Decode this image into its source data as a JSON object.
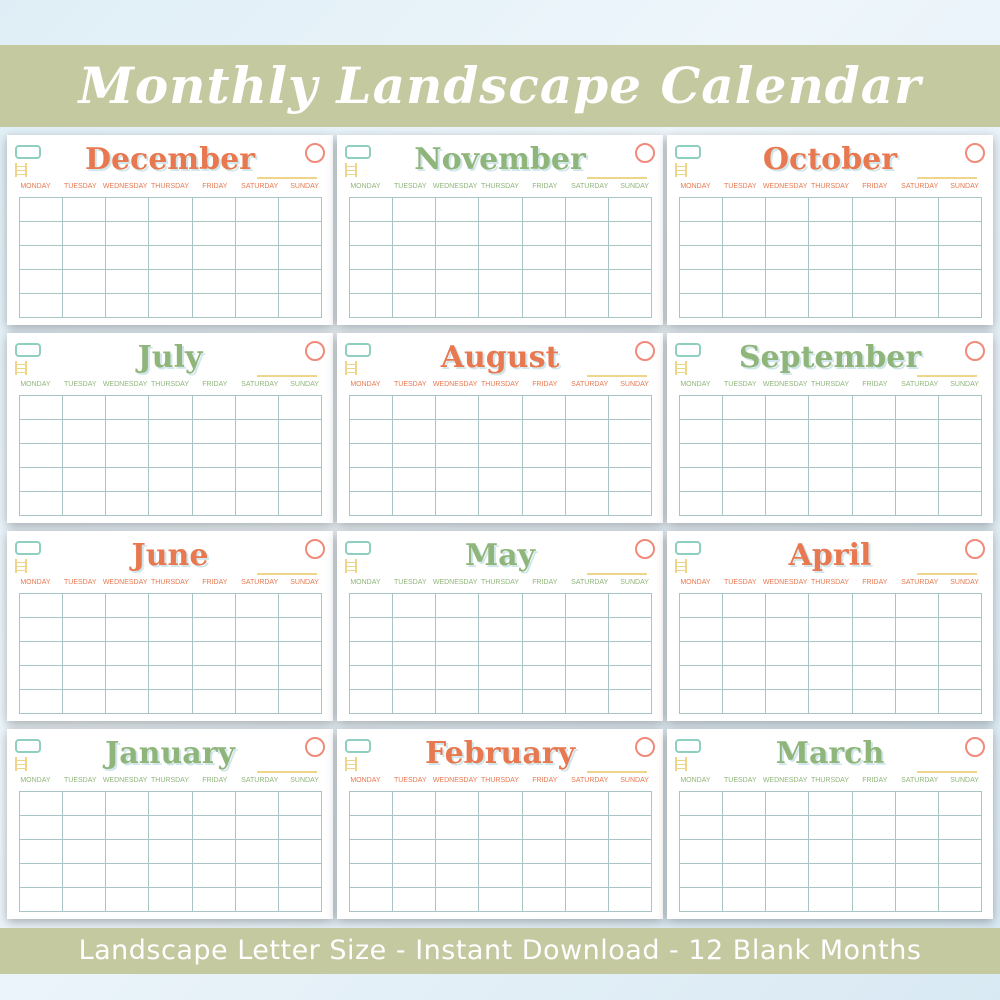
{
  "header": {
    "title": "Monthly Landscape Calendar"
  },
  "footer": {
    "tagline": "Landscape Letter Size - Instant Download - 12 Blank Months"
  },
  "colors": {
    "banner": "#c5c9a0",
    "orange": "#e8784f",
    "green": "#8fb57a",
    "grid": "#a8c4c4",
    "yellow": "#efd58a"
  },
  "weekdays": [
    "MONDAY",
    "TUESDAY",
    "WEDNESDAY",
    "THURSDAY",
    "FRIDAY",
    "SATURDAY",
    "SUNDAY"
  ],
  "months": [
    {
      "name": "December",
      "color": "orange"
    },
    {
      "name": "November",
      "color": "green"
    },
    {
      "name": "October",
      "color": "orange"
    },
    {
      "name": "July",
      "color": "green"
    },
    {
      "name": "August",
      "color": "orange"
    },
    {
      "name": "September",
      "color": "green"
    },
    {
      "name": "June",
      "color": "orange"
    },
    {
      "name": "May",
      "color": "green"
    },
    {
      "name": "April",
      "color": "orange"
    },
    {
      "name": "January",
      "color": "green"
    },
    {
      "name": "February",
      "color": "orange"
    },
    {
      "name": "March",
      "color": "green"
    }
  ]
}
